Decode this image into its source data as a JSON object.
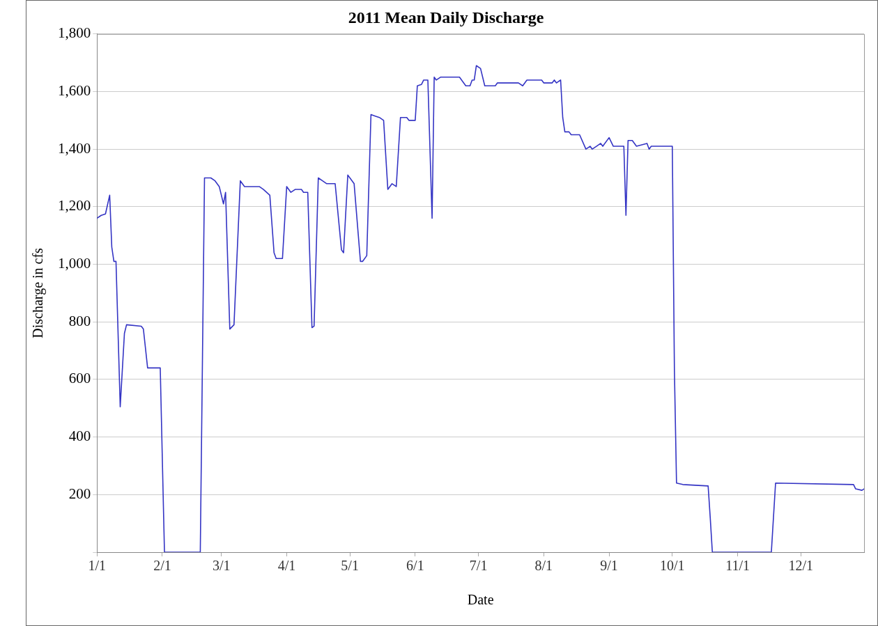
{
  "chart_data": {
    "type": "line",
    "title": "2011 Mean Daily Discharge",
    "xlabel": "Date",
    "ylabel": "Discharge in cfs",
    "grid": "y",
    "xlim": [
      "--01-01",
      "--12-31"
    ],
    "xticks": [
      {
        "value": "--01-01",
        "label": "1/1"
      },
      {
        "value": "--02-01",
        "label": "2/1"
      },
      {
        "value": "--03-01",
        "label": "3/1"
      },
      {
        "value": "--04-01",
        "label": "4/1"
      },
      {
        "value": "--05-01",
        "label": "5/1"
      },
      {
        "value": "--06-01",
        "label": "6/1"
      },
      {
        "value": "--07-01",
        "label": "7/1"
      },
      {
        "value": "--08-01",
        "label": "8/1"
      },
      {
        "value": "--09-01",
        "label": "9/1"
      },
      {
        "value": "--10-01",
        "label": "10/1"
      },
      {
        "value": "--11-01",
        "label": "11/1"
      },
      {
        "value": "--12-01",
        "label": "12/1"
      }
    ],
    "ylim": [
      0,
      1800
    ],
    "yticks": [
      {
        "value": 0,
        "label": null
      },
      200,
      400,
      600,
      800,
      {
        "value": 1000,
        "label": "1,000"
      },
      {
        "value": 1200,
        "label": "1,200"
      },
      {
        "value": 1400,
        "label": "1,400"
      },
      {
        "value": 1600,
        "label": "1,600"
      },
      {
        "value": 1800,
        "label": "1,800"
      }
    ],
    "x": [
      "--01-01",
      "--01-03",
      "--01-05",
      "--01-07",
      "--01-08",
      "--01-09",
      "--01-10",
      "--01-12",
      "--01-14",
      "--01-15",
      "--01-22",
      "--01-23",
      "--01-25",
      "--01-31",
      "--02-02",
      "--02-19",
      "--02-21",
      "--02-24",
      "--02-26",
      "--02-28",
      "--03-02",
      "--03-03",
      "--03-05",
      "--03-07",
      "--03-10",
      "--03-12",
      "--03-19",
      "--03-21",
      "--03-24",
      "--03-26",
      "--03-27",
      "--03-30",
      "--04-01",
      "--04-03",
      "--04-05",
      "--04-08",
      "--04-09",
      "--04-11",
      "--04-13",
      "--04-14",
      "--04-16",
      "--04-18",
      "--04-20",
      "--04-24",
      "--04-27",
      "--04-28",
      "--04-30",
      "--05-03",
      "--05-05",
      "--05-06",
      "--05-07",
      "--05-09",
      "--05-11",
      "--05-13",
      "--05-15",
      "--05-17",
      "--05-19",
      "--05-21",
      "--05-23",
      "--05-25",
      "--05-28",
      "--05-29",
      "--06-01",
      "--06-02",
      "--06-04",
      "--06-05",
      "--06-07",
      "--06-09",
      "--06-10",
      "--06-11",
      "--06-13",
      "--06-22",
      "--06-25",
      "--06-27",
      "--06-28",
      "--06-29",
      "--06-30",
      "--07-02",
      "--07-04",
      "--07-09",
      "--07-10",
      "--07-20",
      "--07-22",
      "--07-24",
      "--07-31",
      "--08-01",
      "--08-05",
      "--08-06",
      "--08-07",
      "--08-09",
      "--08-10",
      "--08-11",
      "--08-13",
      "--08-14",
      "--08-18",
      "--08-21",
      "--08-23",
      "--08-24",
      "--08-26",
      "--08-28",
      "--08-29",
      "--09-01",
      "--09-03",
      "--09-08",
      "--09-09",
      "--09-10",
      "--09-12",
      "--09-14",
      "--09-19",
      "--09-20",
      "--09-21",
      "--10-01",
      "--10-02",
      "--10-03",
      "--10-06",
      "--10-18",
      "--10-19",
      "--10-20",
      "--11-17",
      "--11-18",
      "--11-19",
      "--12-26",
      "--12-27",
      "--12-30",
      "--12-31"
    ],
    "series": [
      {
        "color": "#3434c4",
        "values": [
          1160,
          1170,
          1175,
          1240,
          1060,
          1010,
          1010,
          505,
          760,
          790,
          785,
          775,
          640,
          640,
          0,
          0,
          1300,
          1300,
          1290,
          1270,
          1210,
          1250,
          775,
          790,
          1290,
          1270,
          1270,
          1260,
          1240,
          1040,
          1020,
          1020,
          1270,
          1250,
          1260,
          1260,
          1250,
          1250,
          780,
          785,
          1300,
          1290,
          1280,
          1280,
          1050,
          1040,
          1310,
          1280,
          1100,
          1010,
          1010,
          1030,
          1520,
          1515,
          1510,
          1500,
          1260,
          1280,
          1270,
          1510,
          1510,
          1500,
          1500,
          1620,
          1625,
          1640,
          1640,
          1160,
          1650,
          1640,
          1650,
          1650,
          1620,
          1620,
          1640,
          1640,
          1690,
          1680,
          1620,
          1620,
          1630,
          1630,
          1620,
          1640,
          1640,
          1630,
          1630,
          1640,
          1630,
          1640,
          1510,
          1460,
          1460,
          1450,
          1450,
          1400,
          1410,
          1400,
          1410,
          1420,
          1410,
          1440,
          1410,
          1410,
          1170,
          1430,
          1430,
          1410,
          1420,
          1400,
          1410,
          1410,
          630,
          240,
          235,
          230,
          120,
          0,
          0,
          120,
          240,
          235,
          220,
          215,
          220
        ]
      }
    ]
  }
}
